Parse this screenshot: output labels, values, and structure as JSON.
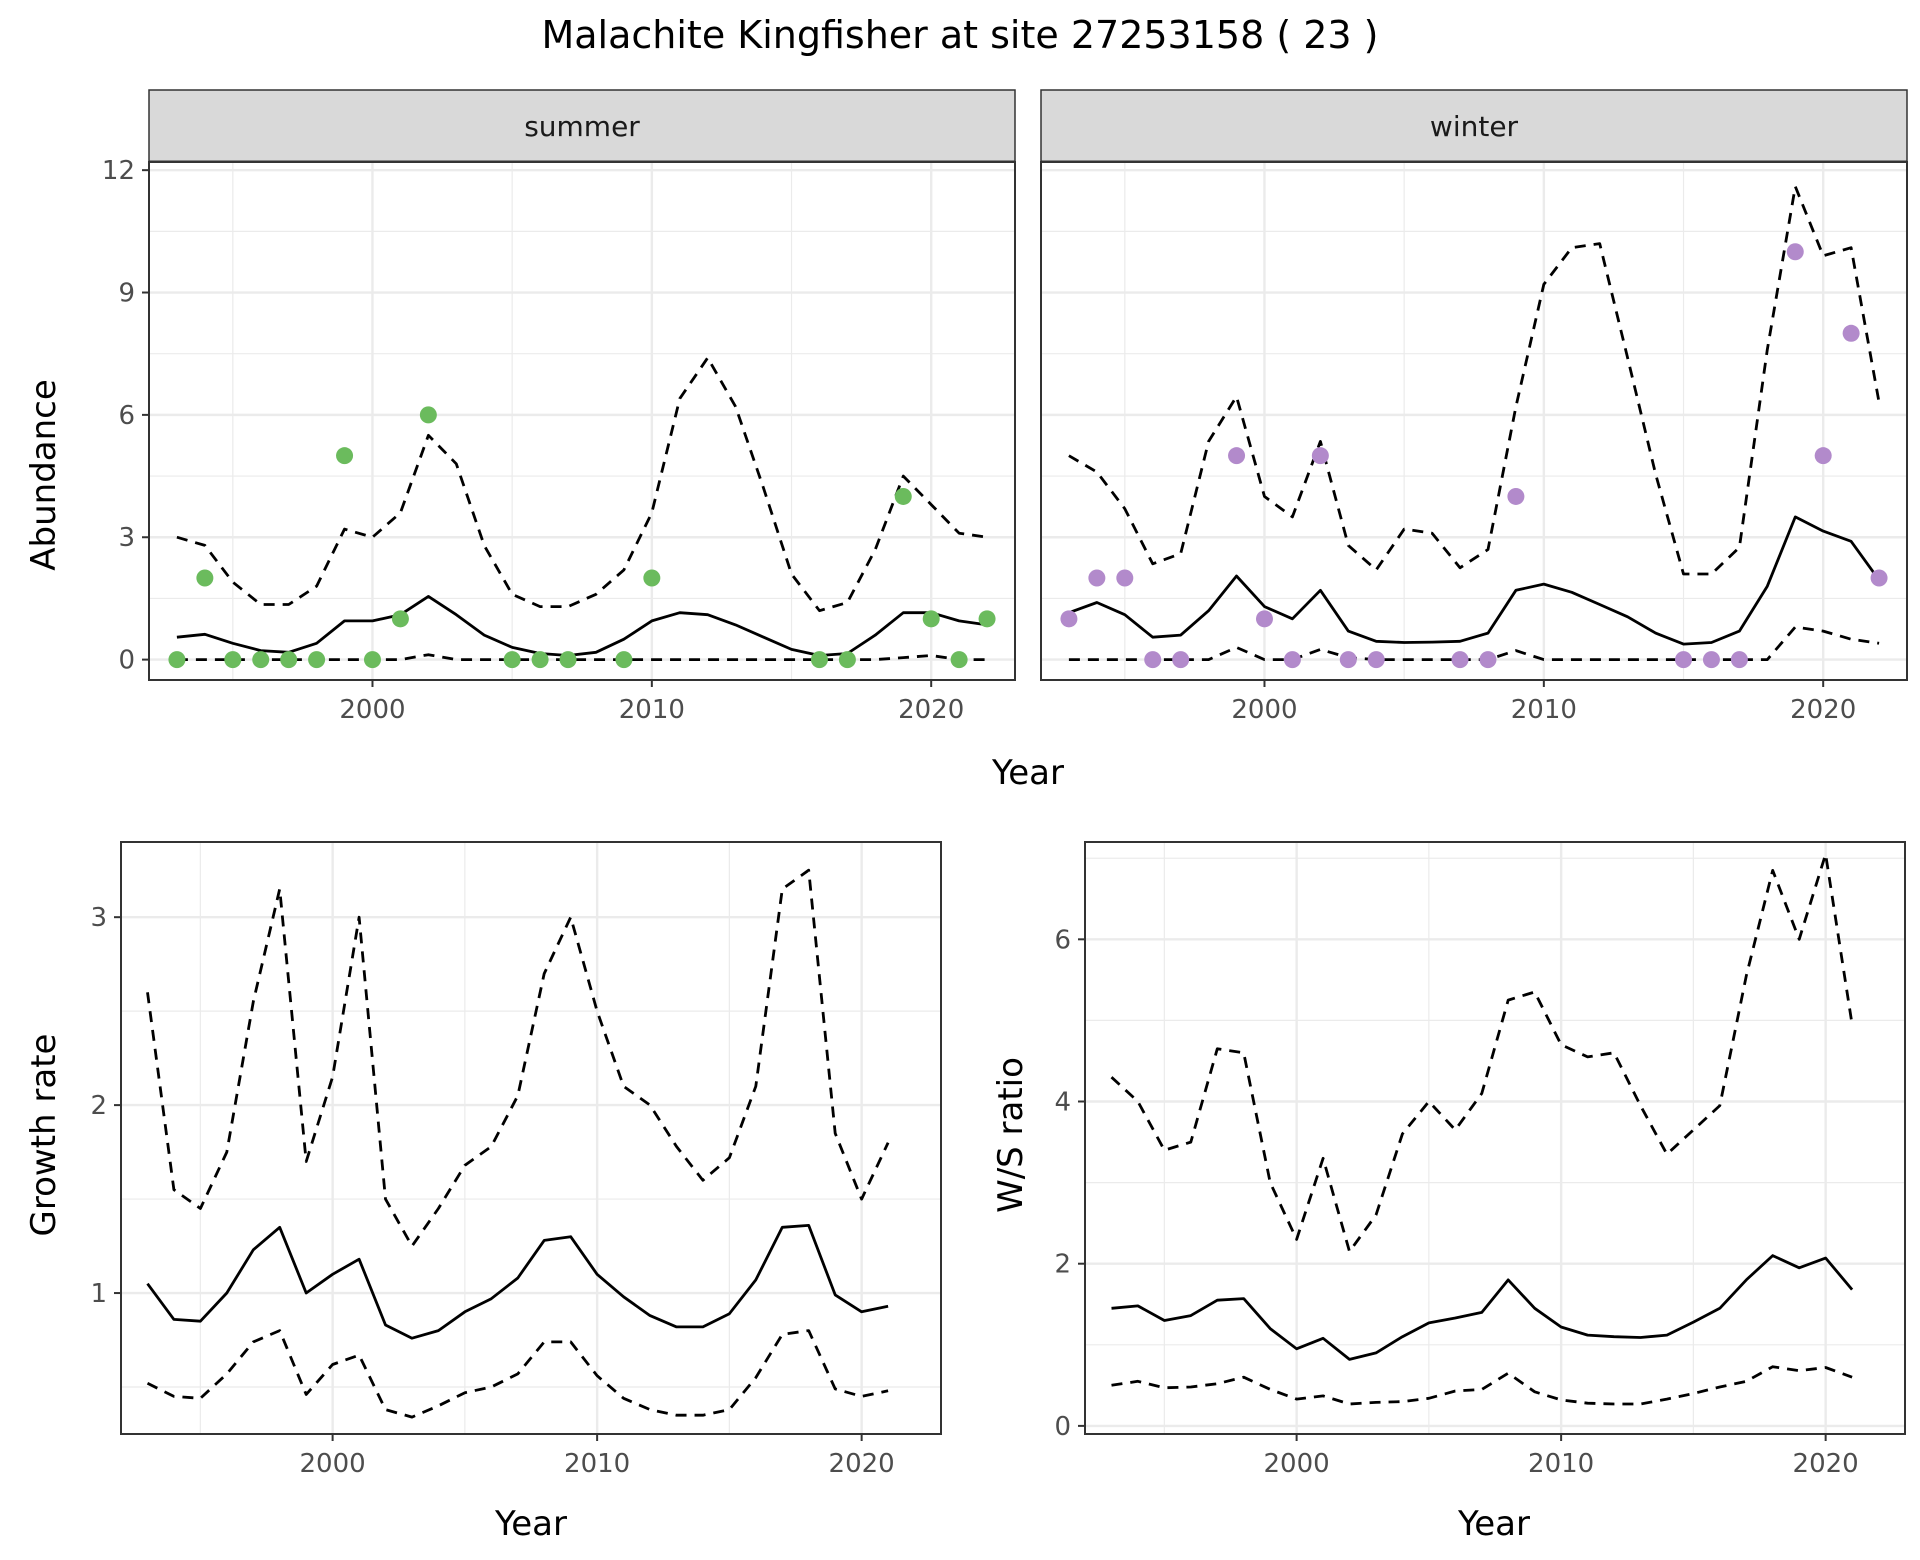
{
  "title": "Malachite Kingfisher at site 27253158 ( 23 )",
  "colors": {
    "summer_points": "#6BBB5D",
    "winter_points": "#B28ACB",
    "lines": "#000000",
    "grid": "#ebebeb",
    "strip_bg": "#d9d9d9",
    "panel_border": "#333333"
  },
  "chart_data": [
    {
      "type": "line",
      "facet": "summer",
      "xlabel": "Year",
      "ylabel": "Abundance",
      "xlim": [
        1992,
        2023
      ],
      "ylim": [
        -0.5,
        12.2
      ],
      "x_ticks": [
        2000,
        2010,
        2020
      ],
      "y_ticks": [
        0,
        3,
        6,
        9,
        12
      ],
      "x": [
        1993,
        1994,
        1995,
        1996,
        1997,
        1998,
        1999,
        2000,
        2001,
        2002,
        2003,
        2004,
        2005,
        2006,
        2007,
        2008,
        2009,
        2010,
        2011,
        2012,
        2013,
        2014,
        2015,
        2016,
        2017,
        2018,
        2019,
        2020,
        2021,
        2022
      ],
      "series": [
        {
          "role": "mean",
          "style": "solid",
          "values": [
            0.55,
            0.62,
            0.4,
            0.22,
            0.18,
            0.4,
            0.95,
            0.95,
            1.1,
            1.55,
            1.1,
            0.6,
            0.3,
            0.15,
            0.1,
            0.18,
            0.5,
            0.95,
            1.15,
            1.1,
            0.85,
            0.55,
            0.25,
            0.1,
            0.15,
            0.6,
            1.15,
            1.15,
            0.95,
            0.85
          ]
        },
        {
          "role": "upper",
          "style": "dashed",
          "values": [
            3.0,
            2.8,
            1.9,
            1.35,
            1.35,
            1.8,
            3.2,
            3.0,
            3.6,
            5.5,
            4.8,
            2.8,
            1.6,
            1.3,
            1.3,
            1.6,
            2.2,
            3.6,
            6.4,
            7.4,
            6.2,
            4.2,
            2.1,
            1.2,
            1.4,
            2.7,
            4.5,
            3.8,
            3.1,
            3.0
          ]
        },
        {
          "role": "lower",
          "style": "dashed",
          "values": [
            0,
            0,
            0,
            0,
            0,
            0,
            0,
            0,
            0,
            0.12,
            0,
            0,
            0,
            0,
            0,
            0,
            0,
            0,
            0,
            0,
            0,
            0,
            0,
            0,
            0,
            0,
            0.05,
            0.1,
            0,
            0
          ]
        }
      ],
      "points": {
        "x": [
          1993,
          1994,
          1995,
          1996,
          1997,
          1998,
          1999,
          2000,
          2001,
          2002,
          2005,
          2006,
          2007,
          2009,
          2010,
          2016,
          2017,
          2019,
          2020,
          2021,
          2022
        ],
        "y": [
          0,
          2,
          0,
          0,
          0,
          0,
          5,
          0,
          1,
          6,
          0,
          0,
          0,
          0,
          2,
          0,
          0,
          4,
          1,
          0,
          1
        ]
      }
    },
    {
      "type": "line",
      "facet": "winter",
      "xlabel": "Year",
      "ylabel": "Abundance",
      "xlim": [
        1992,
        2023
      ],
      "ylim": [
        -0.5,
        12.2
      ],
      "x_ticks": [
        2000,
        2010,
        2020
      ],
      "y_ticks": [
        0,
        3,
        6,
        9,
        12
      ],
      "x": [
        1993,
        1994,
        1995,
        1996,
        1997,
        1998,
        1999,
        2000,
        2001,
        2002,
        2003,
        2004,
        2005,
        2006,
        2007,
        2008,
        2009,
        2010,
        2011,
        2012,
        2013,
        2014,
        2015,
        2016,
        2017,
        2018,
        2019,
        2020,
        2021,
        2022
      ],
      "series": [
        {
          "role": "mean",
          "style": "solid",
          "values": [
            1.15,
            1.4,
            1.1,
            0.55,
            0.6,
            1.2,
            2.05,
            1.3,
            1.0,
            1.7,
            0.7,
            0.45,
            0.42,
            0.43,
            0.45,
            0.65,
            1.7,
            1.85,
            1.65,
            1.35,
            1.05,
            0.65,
            0.38,
            0.42,
            0.7,
            1.8,
            3.5,
            3.15,
            2.9,
            1.95
          ]
        },
        {
          "role": "upper",
          "style": "dashed",
          "values": [
            5.0,
            4.6,
            3.7,
            2.35,
            2.6,
            5.35,
            6.45,
            4.0,
            3.5,
            5.35,
            2.8,
            2.2,
            3.2,
            3.1,
            2.25,
            2.7,
            6.2,
            9.2,
            10.1,
            10.2,
            7.4,
            4.55,
            2.1,
            2.1,
            2.75,
            7.6,
            11.6,
            9.9,
            10.1,
            6.3
          ]
        },
        {
          "role": "lower",
          "style": "dashed",
          "values": [
            0,
            0,
            0,
            0,
            0,
            0,
            0.3,
            0,
            0,
            0.25,
            0.05,
            0,
            0,
            0,
            0,
            0,
            0.22,
            0,
            0,
            0,
            0,
            0,
            0,
            0,
            0,
            0,
            0.8,
            0.7,
            0.5,
            0.4
          ]
        }
      ],
      "points": {
        "x": [
          1993,
          1994,
          1995,
          1996,
          1997,
          1999,
          2000,
          2001,
          2002,
          2003,
          2004,
          2007,
          2008,
          2009,
          2015,
          2016,
          2017,
          2019,
          2020,
          2021,
          2022
        ],
        "y": [
          1,
          2,
          2,
          0,
          0,
          5,
          1,
          0,
          5,
          0,
          0,
          0,
          0,
          4,
          0,
          0,
          0,
          10,
          5,
          8,
          2
        ]
      }
    },
    {
      "type": "line",
      "xlabel": "Year",
      "ylabel": "Growth rate",
      "xlim": [
        1992,
        2023
      ],
      "ylim": [
        0.25,
        3.4
      ],
      "x_ticks": [
        2000,
        2010,
        2020
      ],
      "y_ticks": [
        1,
        2,
        3
      ],
      "x": [
        1993,
        1994,
        1995,
        1996,
        1997,
        1998,
        1999,
        2000,
        2001,
        2002,
        2003,
        2004,
        2005,
        2006,
        2007,
        2008,
        2009,
        2010,
        2011,
        2012,
        2013,
        2014,
        2015,
        2016,
        2017,
        2018,
        2019,
        2020,
        2021
      ],
      "series": [
        {
          "role": "mean",
          "style": "solid",
          "values": [
            1.05,
            0.86,
            0.85,
            1.0,
            1.23,
            1.35,
            1.0,
            1.1,
            1.18,
            0.83,
            0.76,
            0.8,
            0.9,
            0.97,
            1.08,
            1.28,
            1.3,
            1.1,
            0.98,
            0.88,
            0.82,
            0.82,
            0.89,
            1.07,
            1.35,
            1.36,
            0.99,
            0.9,
            0.93
          ]
        },
        {
          "role": "upper",
          "style": "dashed",
          "values": [
            2.6,
            1.55,
            1.45,
            1.75,
            2.55,
            3.15,
            1.7,
            2.15,
            3.0,
            1.5,
            1.25,
            1.45,
            1.68,
            1.78,
            2.05,
            2.7,
            3.0,
            2.5,
            2.1,
            2.0,
            1.78,
            1.6,
            1.72,
            2.1,
            3.15,
            3.25,
            1.85,
            1.5,
            1.8
          ]
        },
        {
          "role": "lower",
          "style": "dashed",
          "values": [
            0.52,
            0.45,
            0.44,
            0.57,
            0.74,
            0.8,
            0.46,
            0.62,
            0.67,
            0.38,
            0.34,
            0.4,
            0.47,
            0.5,
            0.57,
            0.74,
            0.74,
            0.56,
            0.44,
            0.38,
            0.35,
            0.35,
            0.38,
            0.55,
            0.78,
            0.8,
            0.49,
            0.45,
            0.48
          ]
        }
      ]
    },
    {
      "type": "line",
      "xlabel": "Year",
      "ylabel": "W/S ratio",
      "xlim": [
        1992,
        2023
      ],
      "ylim": [
        -0.1,
        7.2
      ],
      "x_ticks": [
        2000,
        2010,
        2020
      ],
      "y_ticks": [
        0,
        2,
        4,
        6
      ],
      "x": [
        1993,
        1994,
        1995,
        1996,
        1997,
        1998,
        1999,
        2000,
        2001,
        2002,
        2003,
        2004,
        2005,
        2006,
        2007,
        2008,
        2009,
        2010,
        2011,
        2012,
        2013,
        2014,
        2015,
        2016,
        2017,
        2018,
        2019,
        2020,
        2021
      ],
      "series": [
        {
          "role": "mean",
          "style": "solid",
          "values": [
            1.45,
            1.48,
            1.3,
            1.36,
            1.55,
            1.57,
            1.2,
            0.95,
            1.08,
            0.82,
            0.9,
            1.1,
            1.27,
            1.33,
            1.4,
            1.8,
            1.45,
            1.22,
            1.12,
            1.1,
            1.09,
            1.12,
            1.28,
            1.45,
            1.8,
            2.1,
            1.95,
            2.07,
            1.68
          ]
        },
        {
          "role": "upper",
          "style": "dashed",
          "values": [
            4.3,
            4.0,
            3.4,
            3.5,
            4.65,
            4.6,
            3.0,
            2.3,
            3.3,
            2.15,
            2.6,
            3.6,
            4.0,
            3.65,
            4.1,
            5.25,
            5.35,
            4.7,
            4.55,
            4.6,
            3.95,
            3.35,
            3.65,
            3.95,
            5.55,
            6.85,
            6.0,
            7.05,
            4.95
          ]
        },
        {
          "role": "lower",
          "style": "dashed",
          "values": [
            0.5,
            0.55,
            0.47,
            0.48,
            0.52,
            0.6,
            0.45,
            0.33,
            0.37,
            0.27,
            0.29,
            0.3,
            0.34,
            0.43,
            0.45,
            0.65,
            0.42,
            0.32,
            0.28,
            0.27,
            0.27,
            0.33,
            0.4,
            0.48,
            0.55,
            0.73,
            0.68,
            0.72,
            0.6
          ]
        }
      ]
    }
  ],
  "facets": {
    "summer": "summer",
    "winter": "winter"
  }
}
